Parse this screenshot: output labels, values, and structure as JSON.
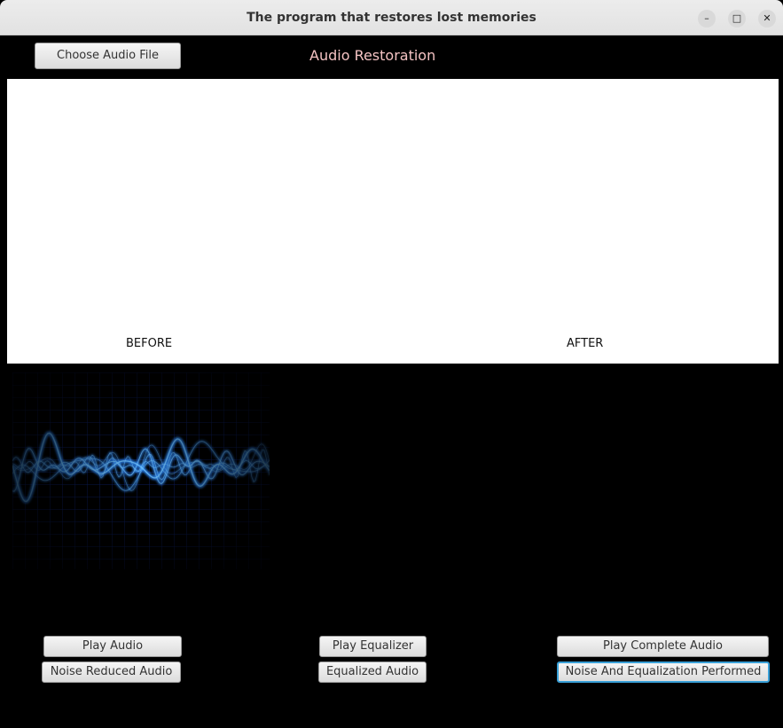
{
  "window": {
    "title": "The program that restores lost memories",
    "controls": [
      "minimize-icon",
      "maximize-icon",
      "close-icon"
    ]
  },
  "header": {
    "choose_button": "Choose Audio File",
    "title": "Audio Restoration"
  },
  "panel": {
    "before_label": "BEFORE",
    "after_label": "AFTER"
  },
  "buttons": {
    "play_audio": "Play Audio",
    "noise_reduced": "Noise Reduced Audio",
    "play_equalizer": "Play Equalizer",
    "equalized_audio": "Equalized Audio",
    "play_complete": "Play Complete Audio",
    "noise_and_eq": "Noise And Equalization Performed"
  },
  "colors": {
    "background": "#000000",
    "title_accent": "#f4c3c3",
    "focus": "#39a0d8",
    "wave": "#2f8cff"
  }
}
